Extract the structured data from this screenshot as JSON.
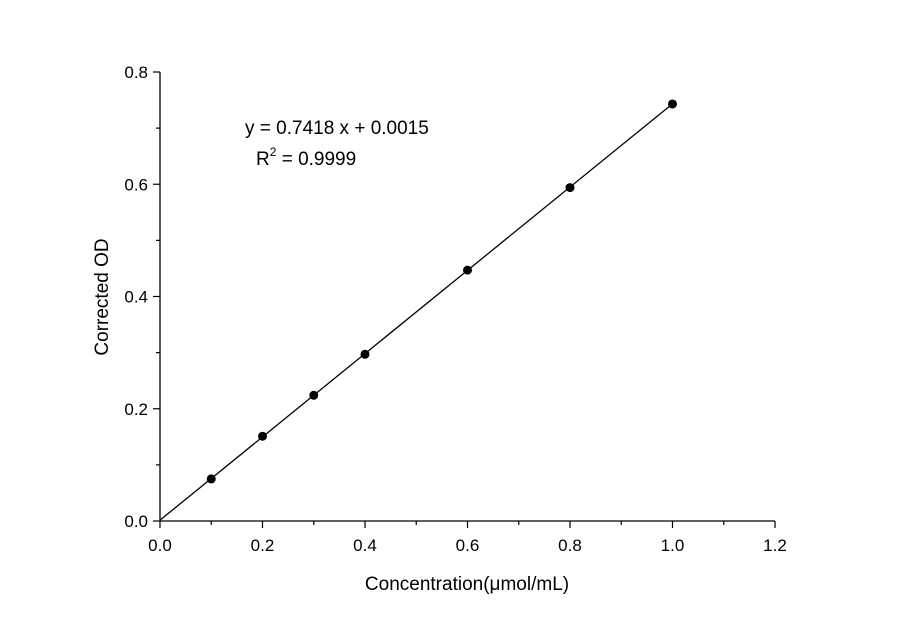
{
  "chart_data": {
    "type": "scatter",
    "title": "",
    "xlabel": "Concentration(μmol/mL)",
    "ylabel": "Corrected OD",
    "xlim": [
      0.0,
      1.2
    ],
    "ylim": [
      0.0,
      0.8
    ],
    "x_ticks": [
      "0.0",
      "0.2",
      "0.4",
      "0.6",
      "0.8",
      "1.0",
      "1.2"
    ],
    "y_ticks": [
      "0.0",
      "0.2",
      "0.4",
      "0.6",
      "0.8"
    ],
    "grid": false,
    "legend": "none",
    "series": [
      {
        "x": [
          0.1,
          0.2,
          0.3,
          0.4,
          0.6,
          0.8,
          1.0
        ],
        "y": [
          0.075,
          0.151,
          0.224,
          0.297,
          0.447,
          0.594,
          0.743
        ]
      }
    ],
    "fit_line": {
      "slope": 0.7418,
      "intercept": 0.0015,
      "x_range": [
        0.0,
        1.0
      ]
    },
    "annotations": {
      "equation": "y = 0.7418 x + 0.0015",
      "r2_prefix": "R",
      "r2_sup": "2",
      "r2_value": " = 0.9999"
    },
    "colors": {
      "marker": "#000000",
      "line": "#000000",
      "axis": "#000000"
    }
  }
}
